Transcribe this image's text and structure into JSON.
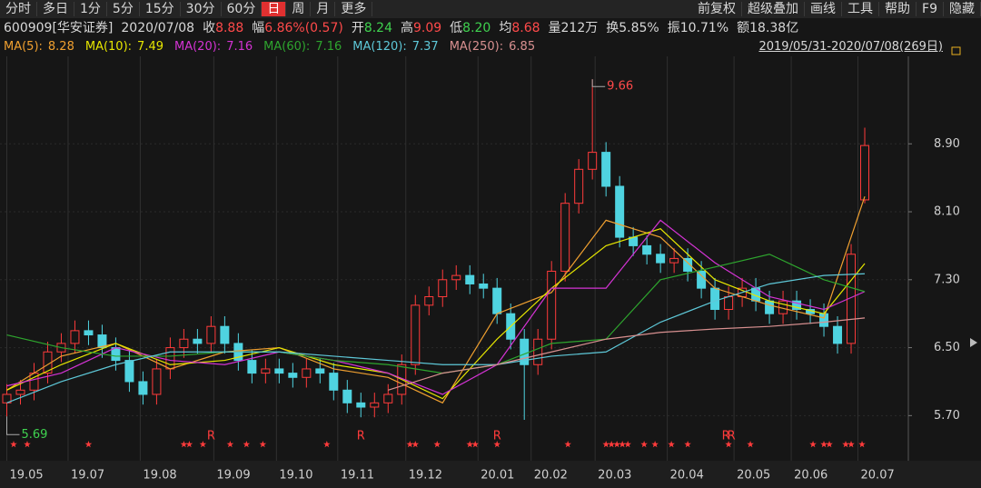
{
  "toolbar": {
    "left": [
      "分时",
      "多日",
      "1分",
      "5分",
      "15分",
      "30分",
      "60分",
      "日",
      "周",
      "月",
      "更多"
    ],
    "active": 7,
    "right": [
      "前复权",
      "超级叠加",
      "画线",
      "工具",
      "帮助",
      "F9",
      "隐藏"
    ]
  },
  "info": [
    {
      "label": "",
      "value": "600909[华安证券]",
      "color": "#d8d8d8"
    },
    {
      "label": "",
      "value": "2020/07/08",
      "color": "#d8d8d8"
    },
    {
      "label": "收",
      "value": "8.88",
      "color": "#ff4a4a"
    },
    {
      "label": "幅",
      "value": "6.86%(0.57)",
      "color": "#ff4a4a"
    },
    {
      "label": "开",
      "value": "8.24",
      "color": "#3fd24f"
    },
    {
      "label": "高",
      "value": "9.09",
      "color": "#ff4a4a"
    },
    {
      "label": "低",
      "value": "8.20",
      "color": "#3fd24f"
    },
    {
      "label": "均",
      "value": "8.68",
      "color": "#ff4a4a"
    },
    {
      "label": "量",
      "value": "212万",
      "color": "#d8d8d8"
    },
    {
      "label": "换",
      "value": "5.85%",
      "color": "#d8d8d8"
    },
    {
      "label": "振",
      "value": "10.71%",
      "color": "#d8d8d8"
    },
    {
      "label": "额",
      "value": "18.38亿",
      "color": "#d8d8d8"
    }
  ],
  "date_range": "2019/05/31-2020/07/08(269日)",
  "chart_data": {
    "type": "candlestick",
    "up_color": "#ff3b3b",
    "down_color": "#4fd3e0",
    "xlim": [
      -0.5,
      66.2
    ],
    "ylim": [
      5.19,
      9.93
    ],
    "xticks": [
      {
        "value": 0,
        "label": "19.05"
      },
      {
        "value": 4.5,
        "label": "19.07"
      },
      {
        "value": 9.8,
        "label": "19.08"
      },
      {
        "value": 15.2,
        "label": "19.09"
      },
      {
        "value": 19.8,
        "label": "19.10"
      },
      {
        "value": 24.3,
        "label": "19.11"
      },
      {
        "value": 29.3,
        "label": "19.12"
      },
      {
        "value": 34.6,
        "label": "20.01"
      },
      {
        "value": 38.5,
        "label": "20.02"
      },
      {
        "value": 43.2,
        "label": "20.03"
      },
      {
        "value": 48.5,
        "label": "20.04"
      },
      {
        "value": 53.4,
        "label": "20.05"
      },
      {
        "value": 57.6,
        "label": "20.06"
      },
      {
        "value": 62.5,
        "label": "20.07"
      }
    ],
    "yticks": [
      {
        "value": 5.7,
        "label": "5.70"
      },
      {
        "value": 6.5,
        "label": "6.50"
      },
      {
        "value": 7.3,
        "label": "7.30"
      },
      {
        "value": 8.1,
        "label": "8.10"
      },
      {
        "value": 8.9,
        "label": "8.90"
      }
    ],
    "grid": true,
    "open": [
      5.85,
      5.95,
      6.0,
      6.2,
      6.45,
      6.55,
      6.7,
      6.65,
      6.5,
      6.35,
      6.1,
      5.95,
      6.25,
      6.5,
      6.6,
      6.55,
      6.75,
      6.55,
      6.35,
      6.2,
      6.25,
      6.2,
      6.15,
      6.25,
      6.2,
      6.0,
      5.85,
      5.8,
      5.85,
      5.95,
      6.3,
      7.0,
      7.1,
      7.3,
      7.35,
      7.25,
      7.2,
      6.9,
      6.6,
      6.3,
      6.6,
      7.4,
      8.2,
      8.6,
      8.8,
      8.4,
      7.8,
      7.7,
      7.6,
      7.5,
      7.55,
      7.4,
      7.2,
      6.95,
      7.1,
      7.2,
      7.05,
      6.9,
      7.05,
      6.95,
      6.9,
      6.75,
      6.55,
      8.24
    ],
    "high": [
      6.07,
      6.12,
      6.32,
      6.57,
      6.67,
      6.82,
      6.82,
      6.77,
      6.62,
      6.47,
      6.22,
      6.37,
      6.62,
      6.72,
      6.72,
      6.87,
      6.87,
      6.67,
      6.47,
      6.37,
      6.37,
      6.32,
      6.37,
      6.37,
      6.32,
      6.12,
      5.97,
      5.97,
      6.07,
      6.42,
      7.12,
      7.22,
      7.42,
      7.47,
      7.47,
      7.37,
      7.32,
      7.02,
      6.72,
      6.72,
      7.52,
      8.32,
      8.72,
      9.66,
      8.92,
      8.52,
      7.92,
      7.82,
      7.72,
      7.67,
      7.67,
      7.52,
      7.32,
      7.22,
      7.32,
      7.32,
      7.17,
      7.17,
      7.17,
      7.07,
      7.02,
      6.87,
      7.72,
      9.09
    ],
    "low": [
      5.69,
      5.83,
      5.88,
      6.08,
      6.33,
      6.43,
      6.53,
      6.38,
      6.23,
      5.98,
      5.83,
      5.83,
      6.13,
      6.38,
      6.43,
      6.43,
      6.43,
      6.23,
      6.08,
      6.08,
      6.08,
      6.03,
      6.03,
      6.08,
      5.88,
      5.73,
      5.68,
      5.68,
      5.73,
      5.83,
      6.18,
      6.88,
      6.98,
      7.18,
      7.13,
      7.08,
      6.78,
      6.48,
      5.65,
      6.18,
      6.48,
      7.28,
      8.08,
      8.48,
      8.28,
      7.68,
      7.58,
      7.48,
      7.38,
      7.38,
      7.28,
      7.08,
      6.83,
      6.83,
      6.98,
      6.93,
      6.78,
      6.78,
      6.83,
      6.78,
      6.63,
      6.43,
      6.43,
      8.2
    ],
    "close": [
      5.95,
      6.0,
      6.2,
      6.45,
      6.55,
      6.7,
      6.65,
      6.5,
      6.35,
      6.1,
      5.95,
      6.25,
      6.5,
      6.6,
      6.55,
      6.75,
      6.55,
      6.35,
      6.2,
      6.25,
      6.2,
      6.15,
      6.25,
      6.2,
      6.0,
      5.85,
      5.8,
      5.85,
      5.95,
      6.3,
      7.0,
      7.1,
      7.3,
      7.35,
      7.25,
      7.2,
      6.9,
      6.6,
      6.3,
      6.6,
      7.4,
      8.2,
      8.6,
      8.8,
      8.4,
      7.8,
      7.7,
      7.6,
      7.5,
      7.55,
      7.4,
      7.2,
      6.95,
      7.1,
      7.2,
      7.05,
      6.9,
      7.05,
      6.95,
      6.9,
      6.75,
      6.55,
      7.6,
      8.88
    ],
    "ma_x": [
      0,
      4,
      8,
      12,
      16,
      20,
      24,
      28,
      32,
      36,
      40,
      44,
      48,
      52,
      56,
      60,
      63
    ],
    "series": [
      {
        "name": "MA(5):",
        "color": "#f0a030",
        "values": [
          6.0,
          6.4,
          6.55,
          6.25,
          6.45,
          6.5,
          6.25,
          6.15,
          5.85,
          6.9,
          7.15,
          8.0,
          7.8,
          7.2,
          7.0,
          6.85,
          8.28
        ]
      },
      {
        "name": "MA(10):",
        "color": "#e6e600",
        "values": [
          6.0,
          6.3,
          6.55,
          6.3,
          6.35,
          6.5,
          6.3,
          6.2,
          5.9,
          6.6,
          7.2,
          7.7,
          7.9,
          7.3,
          7.05,
          6.9,
          7.49
        ]
      },
      {
        "name": "MA(20):",
        "color": "#d433d4",
        "values": [
          6.05,
          6.2,
          6.5,
          6.35,
          6.3,
          6.45,
          6.35,
          6.2,
          5.95,
          6.3,
          7.2,
          7.2,
          8.0,
          7.5,
          7.1,
          6.95,
          7.16
        ]
      },
      {
        "name": "MA(60):",
        "color": "#2ea52e",
        "values": [
          6.65,
          6.5,
          6.4,
          6.4,
          6.45,
          6.45,
          6.35,
          6.3,
          6.2,
          6.3,
          6.55,
          6.6,
          7.3,
          7.45,
          7.6,
          7.3,
          7.16
        ]
      },
      {
        "name": "MA(120):",
        "color": "#5ec8d8",
        "values": [
          5.85,
          6.1,
          6.3,
          6.45,
          6.45,
          6.45,
          6.4,
          6.35,
          6.3,
          6.3,
          6.4,
          6.45,
          6.8,
          7.05,
          7.25,
          7.35,
          7.37
        ]
      },
      {
        "name": "MA(250):",
        "color": "#d89090",
        "values": [
          null,
          null,
          null,
          null,
          null,
          null,
          null,
          6.0,
          6.2,
          6.3,
          6.45,
          6.6,
          6.68,
          6.72,
          6.75,
          6.8,
          6.85
        ]
      }
    ],
    "annotations": [
      {
        "text": "9.66",
        "x": 43,
        "y": 9.66
      },
      {
        "text": "5.69",
        "x": 0,
        "y": 5.69
      }
    ],
    "markers": [
      {
        "text": "R",
        "x": 15
      },
      {
        "text": "R",
        "x": 26
      },
      {
        "text": "R",
        "x": 36
      },
      {
        "text": "R",
        "x": 52.8
      },
      {
        "text": "R",
        "x": 53.2
      }
    ]
  }
}
